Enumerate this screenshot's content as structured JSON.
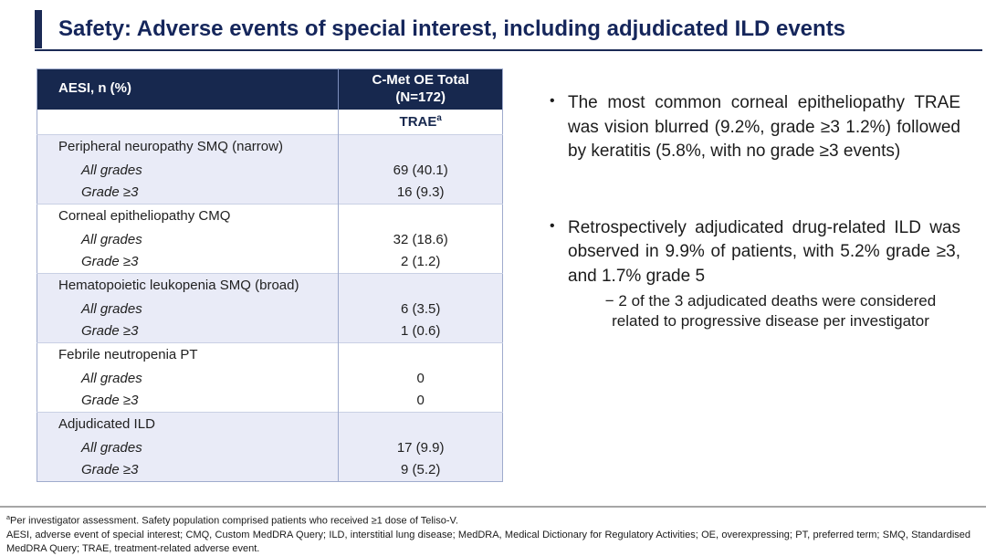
{
  "title": "Safety: Adverse events of special interest, including adjudicated ILD events",
  "table": {
    "col1_header": "AESI, n (%)",
    "col2_header_line1": "C-Met OE Total",
    "col2_header_line2": "(N=172)",
    "subheader": "TRAE",
    "subheader_sup": "a",
    "groups": [
      {
        "category": "Peripheral neuropathy SMQ (narrow)",
        "rows": [
          {
            "label": "All grades",
            "value": "69 (40.1)"
          },
          {
            "label": "Grade ≥3",
            "value": "16 (9.3)"
          }
        ]
      },
      {
        "category": "Corneal epitheliopathy CMQ",
        "rows": [
          {
            "label": "All grades",
            "value": "32 (18.6)"
          },
          {
            "label": "Grade ≥3",
            "value": "2 (1.2)"
          }
        ]
      },
      {
        "category": "Hematopoietic leukopenia SMQ (broad)",
        "rows": [
          {
            "label": "All grades",
            "value": "6 (3.5)"
          },
          {
            "label": "Grade ≥3",
            "value": "1 (0.6)"
          }
        ]
      },
      {
        "category": "Febrile neutropenia PT",
        "rows": [
          {
            "label": "All grades",
            "value": "0"
          },
          {
            "label": "Grade ≥3",
            "value": "0"
          }
        ]
      },
      {
        "category": "Adjudicated ILD",
        "rows": [
          {
            "label": "All grades",
            "value": "17 (9.9)"
          },
          {
            "label": "Grade ≥3",
            "value": "9 (5.2)"
          }
        ]
      }
    ]
  },
  "bullets": {
    "marker": "•",
    "items": [
      {
        "text": "The most common corneal epitheliopathy TRAE was vision blurred (9.2%, grade ≥3 1.2%) followed by keratitis (5.8%, with no grade ≥3 events)"
      },
      {
        "text": "Retrospectively adjudicated drug-related ILD was observed in 9.9% of patients, with 5.2% grade ≥3, and 1.7% grade 5",
        "sub": "− 2 of the 3 adjudicated deaths were considered related to progressive disease per investigator"
      }
    ]
  },
  "footnotes": {
    "sup": "a",
    "line1": "Per investigator assessment. Safety population comprised patients who received ≥1 dose of Teliso-V.",
    "line2": "AESI, adverse event of special interest; CMQ, Custom MedDRA Query; ILD, interstitial lung disease; MedDRA, Medical Dictionary for Regulatory Activities; OE, overexpressing; PT, preferred term; SMQ, Standardised MedDRA Query; TRAE, treatment-related adverse event."
  },
  "colors": {
    "navy_header": "#17284e",
    "navy_title": "#15265b",
    "lavender_row": "#e9ebf7",
    "table_border": "#9fabcd",
    "footer_rule": "#a6a6a6"
  }
}
